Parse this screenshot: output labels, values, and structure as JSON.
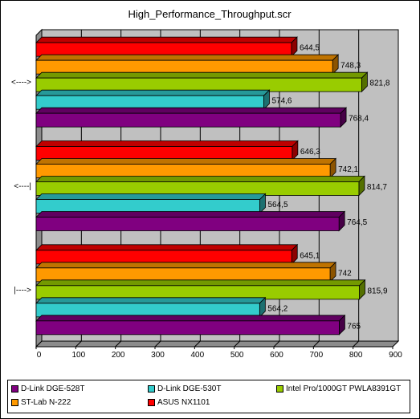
{
  "chart_data": {
    "type": "bar",
    "orientation": "horizontal",
    "title": "High_Performance_Throughput.scr",
    "categories": [
      "<---->",
      "<----|",
      "|---->"
    ],
    "xlim": [
      0,
      900
    ],
    "xticks": [
      0,
      100,
      200,
      300,
      400,
      500,
      600,
      700,
      800,
      900
    ],
    "grid": true,
    "legend_position": "bottom",
    "series": [
      {
        "name": "ASUS NX1101",
        "color": "#ff0000",
        "values": [
          644.5,
          646.3,
          645.1
        ],
        "labels": [
          "644,5",
          "646,3",
          "645,1"
        ]
      },
      {
        "name": "ST-Lab N-222",
        "color": "#ff9900",
        "values": [
          748.3,
          742.1,
          742
        ],
        "labels": [
          "748,3",
          "742,1",
          "742"
        ]
      },
      {
        "name": "Intel Pro/1000GT PWLA8391GT",
        "color": "#99cc00",
        "values": [
          821.8,
          814.7,
          815.9
        ],
        "labels": [
          "821,8",
          "814,7",
          "815,9"
        ]
      },
      {
        "name": "D-Link DGE-530T",
        "color": "#33cccc",
        "values": [
          574.6,
          564.5,
          564.2
        ],
        "labels": [
          "574,6",
          "564,5",
          "564,2"
        ]
      },
      {
        "name": "D-Link DGE-528T",
        "color": "#800080",
        "values": [
          768.4,
          764.5,
          765
        ],
        "labels": [
          "768,4",
          "764,5",
          "765"
        ]
      }
    ]
  },
  "legend": [
    {
      "label": "D-Link DGE-528T",
      "color": "#800080"
    },
    {
      "label": "D-Link DGE-530T",
      "color": "#33cccc"
    },
    {
      "label": "Intel Pro/1000GT PWLA8391GT",
      "color": "#99cc00"
    },
    {
      "label": "ST-Lab N-222",
      "color": "#ff9900"
    },
    {
      "label": "ASUS NX1101",
      "color": "#ff0000"
    }
  ]
}
